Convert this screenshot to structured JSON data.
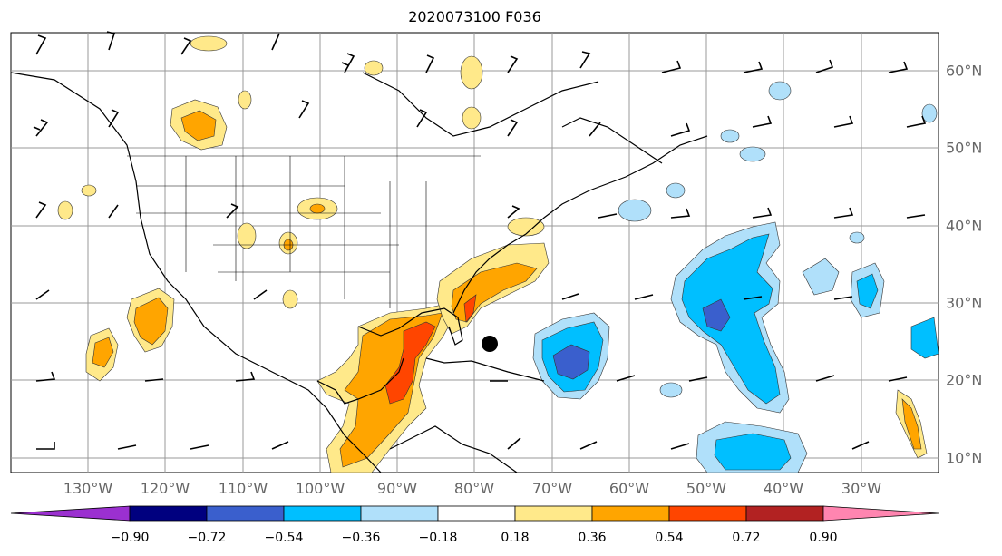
{
  "title": "2020073100 F036",
  "map": {
    "lon_labels": [
      "130°W",
      "120°W",
      "110°W",
      "100°W",
      "90°W",
      "80°W",
      "70°W",
      "60°W",
      "50°W",
      "40°W",
      "30°W"
    ],
    "lat_labels": [
      "60°N",
      "50°N",
      "40°N",
      "30°N",
      "20°N",
      "10°N"
    ],
    "marker": "storm-center"
  },
  "colorbar": {
    "ticks": [
      "−0.90",
      "−0.72",
      "−0.54",
      "−0.36",
      "−0.18",
      "0.18",
      "0.36",
      "0.54",
      "0.72",
      "0.90"
    ],
    "colors": [
      "#9b30d0",
      "#00007f",
      "#3a5fcd",
      "#00bfff",
      "#b0e0fa",
      "#ffffff",
      "#ffe98a",
      "#ffa500",
      "#ff4500",
      "#b22222",
      "#ff85b0"
    ]
  }
}
